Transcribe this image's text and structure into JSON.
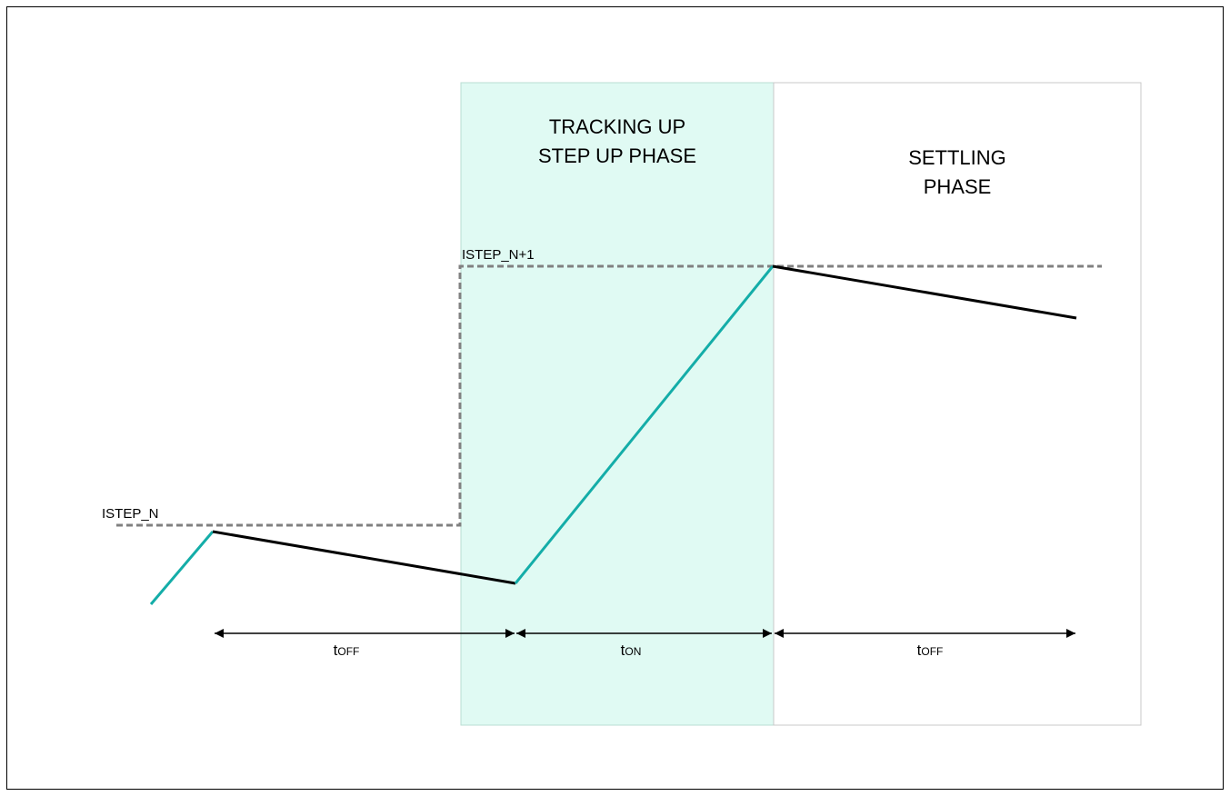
{
  "phases": {
    "tracking": {
      "line1": "TRACKING UP",
      "line2": "STEP UP PHASE",
      "fill": "#e0faf3",
      "border": "#b9ded3"
    },
    "settling": {
      "line1": "SETTLING",
      "line2": "PHASE",
      "border": "#c8c8c8"
    }
  },
  "levels": {
    "istep_n": "ISTEP_N",
    "istep_n1": "ISTEP_N+1"
  },
  "timing": {
    "t1": {
      "main": "t",
      "sub": "OFF"
    },
    "t2": {
      "main": "t",
      "sub": "ON"
    },
    "t3": {
      "main": "t",
      "sub": "OFF"
    }
  },
  "colors": {
    "rising": "#14ada8",
    "falling": "#000000",
    "level": "#808080",
    "frame": "#000000"
  }
}
